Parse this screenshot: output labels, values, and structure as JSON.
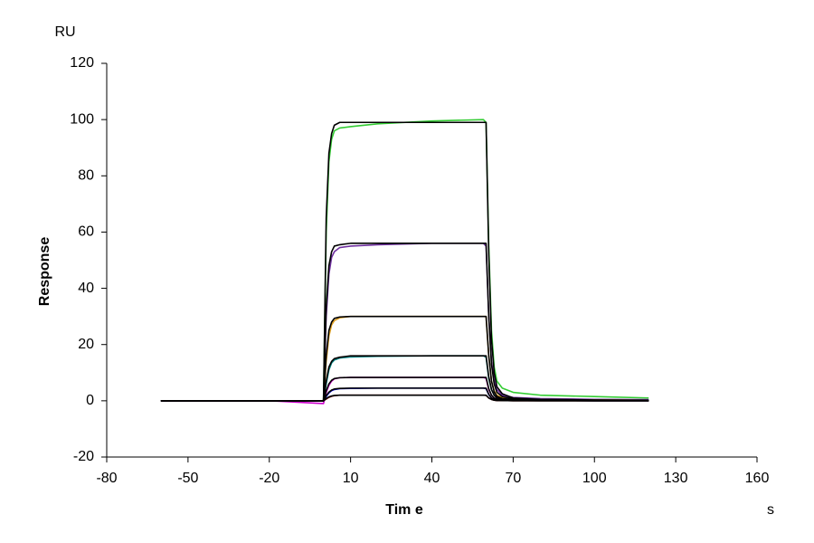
{
  "chart_data": {
    "type": "line",
    "y_unit": "RU",
    "ylabel": "Response",
    "xlabel": "Tim e",
    "x_unit": "s",
    "xlim": [
      -80,
      160
    ],
    "xticks": [
      -80,
      -50,
      -20,
      10,
      40,
      70,
      100,
      130,
      160
    ],
    "ylim": [
      -20,
      120
    ],
    "yticks": [
      -20,
      0,
      20,
      40,
      60,
      80,
      100,
      120
    ],
    "x": [
      -60,
      -40,
      -20,
      0,
      1,
      2,
      3,
      4,
      6,
      10,
      20,
      40,
      59,
      60,
      61,
      62,
      63,
      64,
      66,
      70,
      80,
      100,
      120
    ],
    "series": [
      {
        "color": "#33cc33",
        "values": [
          0,
          0,
          0,
          0,
          60,
          85,
          93,
          96,
          97,
          97.5,
          98.5,
          99.5,
          100,
          99,
          55,
          25,
          12,
          7,
          4.5,
          3,
          2,
          1.5,
          1
        ]
      },
      {
        "color": "#7030a0",
        "values": [
          0,
          0,
          0,
          0,
          30,
          45,
          51,
          53,
          54.5,
          55,
          55.5,
          56,
          56,
          55,
          30,
          14,
          7,
          4,
          2,
          1.2,
          0.8,
          0.5,
          0.4
        ]
      },
      {
        "color": "#e0a020",
        "values": [
          0,
          0,
          0,
          0,
          14,
          23,
          27,
          28.5,
          29.5,
          30,
          30,
          30,
          30,
          30,
          16,
          7,
          3.5,
          2,
          1,
          0.6,
          0.4,
          0.3,
          0.2
        ]
      },
      {
        "color": "#008080",
        "values": [
          0,
          0,
          0,
          0,
          6,
          11,
          13.5,
          14.5,
          15.2,
          15.6,
          15.8,
          16,
          16,
          15.5,
          8,
          4,
          2,
          1.2,
          0.7,
          0.5,
          0.3,
          0.2,
          0.1
        ]
      },
      {
        "color": "#cc00cc",
        "values": [
          0,
          0,
          0,
          -1,
          3,
          5.5,
          7,
          7.8,
          8.2,
          8.3,
          8.3,
          8.3,
          8.3,
          8,
          4,
          2,
          1,
          0.6,
          0.4,
          0.3,
          0.2,
          0.1,
          0.1
        ]
      },
      {
        "color": "#0000cc",
        "values": [
          0,
          0,
          0,
          0,
          1.5,
          2.8,
          3.6,
          4,
          4.3,
          4.4,
          4.5,
          4.5,
          4.5,
          4.3,
          2.2,
          1,
          0.5,
          0.3,
          0.2,
          0.1,
          0.1,
          0,
          0
        ]
      },
      {
        "color": "#800000",
        "values": [
          0,
          0,
          0,
          0,
          0.6,
          1.2,
          1.6,
          1.8,
          2,
          2,
          2,
          2,
          2,
          1.9,
          1,
          0.5,
          0.2,
          0.1,
          0.1,
          0,
          0,
          0,
          0
        ]
      },
      {
        "color": "#000000",
        "values": [
          0,
          0,
          0,
          0,
          65,
          88,
          95,
          98,
          99,
          99,
          99,
          99,
          99,
          99,
          52,
          22,
          10,
          5,
          2.5,
          1,
          0.5,
          0.3,
          0.2
        ]
      },
      {
        "color": "#000000",
        "values": [
          0,
          0,
          0,
          0,
          33,
          48,
          53,
          55,
          55.5,
          56,
          56,
          56,
          56,
          56,
          30,
          13,
          6,
          3,
          1.5,
          0.7,
          0.3,
          0.2,
          0.1
        ]
      },
      {
        "color": "#000000",
        "values": [
          0,
          0,
          0,
          0,
          16,
          25,
          28,
          29.3,
          29.8,
          30,
          30,
          30,
          30,
          30,
          16,
          7,
          3.2,
          1.6,
          0.8,
          0.4,
          0.2,
          0.1,
          0.1
        ]
      },
      {
        "color": "#000000",
        "values": [
          0,
          0,
          0,
          0,
          7,
          12,
          14,
          15,
          15.5,
          16,
          16,
          16,
          16,
          16,
          8.5,
          4,
          2,
          1,
          0.5,
          0.3,
          0.2,
          0.1,
          0.1
        ]
      },
      {
        "color": "#000000",
        "values": [
          0,
          0,
          0,
          0,
          3.5,
          6,
          7.3,
          7.9,
          8.2,
          8.3,
          8.3,
          8.3,
          8.3,
          8.3,
          4.3,
          2,
          1,
          0.5,
          0.3,
          0.2,
          0.1,
          0,
          0
        ]
      },
      {
        "color": "#000000",
        "values": [
          0,
          0,
          0,
          0,
          1.8,
          3.1,
          3.8,
          4.2,
          4.4,
          4.5,
          4.5,
          4.5,
          4.5,
          4.5,
          2.3,
          1,
          0.5,
          0.3,
          0.1,
          0.1,
          0,
          0,
          0
        ]
      },
      {
        "color": "#000000",
        "values": [
          0,
          0,
          0,
          0,
          0.8,
          1.4,
          1.7,
          1.9,
          2,
          2,
          2,
          2,
          2,
          2,
          1,
          0.5,
          0.2,
          0.1,
          0.1,
          0,
          0,
          0,
          0
        ]
      }
    ]
  }
}
